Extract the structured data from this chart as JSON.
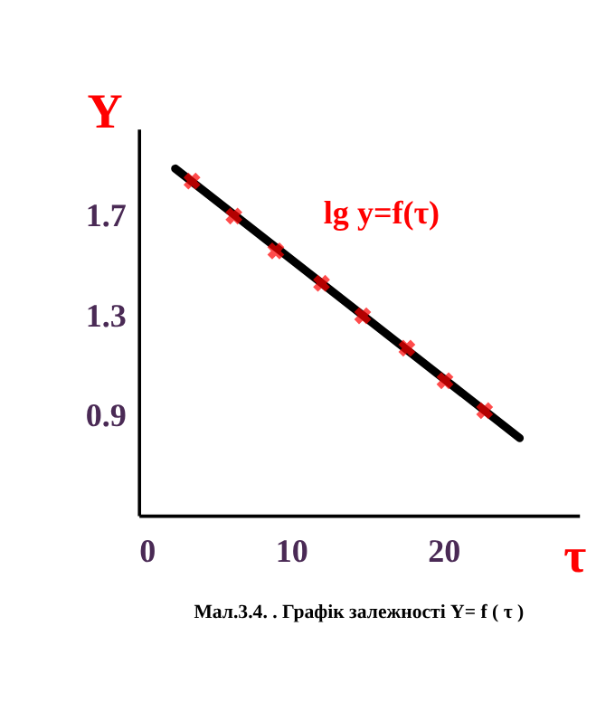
{
  "chart_data": {
    "type": "scatter",
    "xlabel": "τ",
    "ylabel": "Y",
    "xlim": [
      0,
      28.9
    ],
    "ylim": [
      0.5,
      2.05
    ],
    "xticks": [
      0,
      10,
      20
    ],
    "yticks": [
      0.9,
      1.3,
      1.7
    ],
    "grid": false,
    "series": [
      {
        "type": "line",
        "color": "#000000",
        "x": [
          2.4,
          25
        ],
        "values": [
          1.89,
          0.81
        ],
        "line_style": "solid"
      },
      {
        "color": "#ff0000",
        "x": [
          3.5,
          6.25,
          9.0,
          12.0,
          14.7,
          17.6,
          20.1,
          22.7
        ],
        "values": [
          1.84,
          1.7,
          1.56,
          1.43,
          1.3,
          1.17,
          1.04,
          0.92
        ],
        "marker": "cross"
      }
    ],
    "annotations": [
      "lg y=f(τ)",
      "Мал.3.4. . Графік залежності Y= f ( τ )"
    ]
  }
}
